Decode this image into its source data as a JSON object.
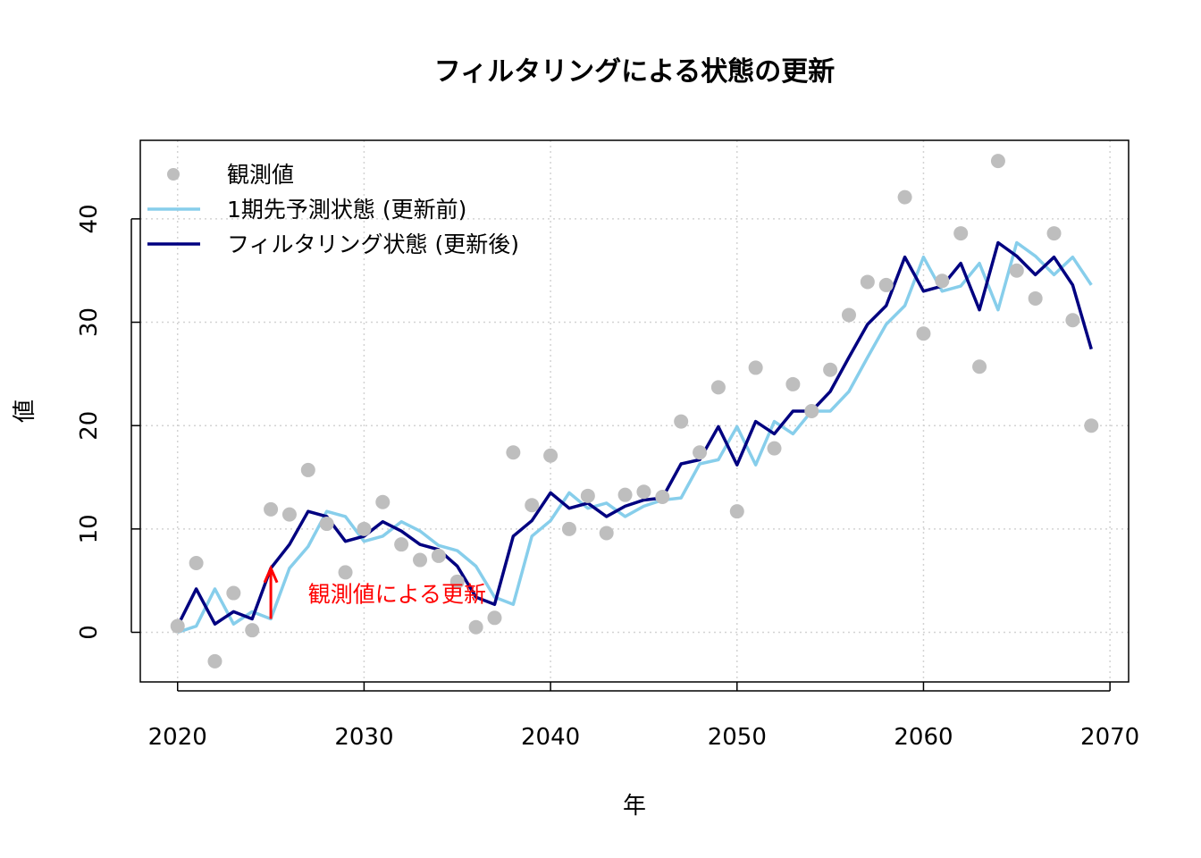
{
  "chart_data": {
    "type": "line",
    "title": "フィルタリングによる状態の更新",
    "xlabel": "年",
    "ylabel": "値",
    "xlim": [
      2018,
      2071
    ],
    "ylim": [
      -4.8,
      47.6
    ],
    "x_ticks": [
      2020,
      2030,
      2040,
      2050,
      2060,
      2070
    ],
    "x_tick_labels": [
      "2020",
      "2030",
      "2040",
      "2050",
      "2060",
      "2070"
    ],
    "y_ticks": [
      0,
      10,
      20,
      30,
      40
    ],
    "y_tick_labels": [
      "0",
      "10",
      "20",
      "30",
      "40"
    ],
    "grid": true,
    "legend_position": "top-left",
    "x": [
      2020,
      2021,
      2022,
      2023,
      2024,
      2025,
      2026,
      2027,
      2028,
      2029,
      2030,
      2031,
      2032,
      2033,
      2034,
      2035,
      2036,
      2037,
      2038,
      2039,
      2040,
      2041,
      2042,
      2043,
      2044,
      2045,
      2046,
      2047,
      2048,
      2049,
      2050,
      2051,
      2052,
      2053,
      2054,
      2055,
      2056,
      2057,
      2058,
      2059,
      2060,
      2061,
      2062,
      2063,
      2064,
      2065,
      2066,
      2067,
      2068,
      2069
    ],
    "series": [
      {
        "name": "観測値",
        "kind": "points",
        "color": "#bebebe",
        "values": [
          0.6,
          6.7,
          -2.8,
          3.8,
          0.2,
          11.9,
          11.4,
          15.7,
          10.5,
          5.8,
          10.0,
          12.6,
          8.5,
          7.0,
          7.4,
          4.9,
          0.5,
          1.4,
          17.4,
          12.3,
          17.1,
          10.0,
          13.2,
          9.6,
          13.3,
          13.6,
          13.1,
          20.4,
          17.4,
          23.7,
          11.7,
          25.6,
          17.8,
          24.0,
          21.4,
          25.4,
          30.7,
          33.9,
          33.6,
          42.1,
          28.9,
          34.0,
          38.6,
          25.7,
          45.6,
          35.0,
          32.3,
          38.6,
          30.2,
          20.0
        ]
      },
      {
        "name": "1期先予測状態 (更新前)",
        "kind": "line",
        "color": "#87ceeb",
        "values": [
          0.0,
          0.6,
          4.2,
          0.8,
          2.0,
          1.3,
          6.2,
          8.3,
          11.7,
          11.2,
          8.8,
          9.3,
          10.7,
          9.8,
          8.4,
          7.9,
          6.4,
          3.4,
          2.7,
          9.3,
          10.8,
          13.5,
          12.0,
          12.5,
          11.2,
          12.2,
          12.8,
          13.0,
          16.3,
          16.7,
          19.9,
          16.2,
          20.4,
          19.2,
          21.4,
          21.4,
          23.3,
          26.6,
          29.8,
          31.6,
          36.3,
          33.0,
          33.5,
          35.7,
          31.2,
          37.7,
          36.4,
          34.6,
          36.3,
          33.6
        ]
      },
      {
        "name": "フィルタリング状態 (更新後)",
        "kind": "line",
        "color": "#000080",
        "values": [
          0.6,
          4.2,
          0.8,
          2.0,
          1.3,
          6.2,
          8.5,
          11.7,
          11.2,
          8.8,
          9.3,
          10.7,
          9.8,
          8.5,
          8.0,
          6.4,
          3.4,
          2.7,
          9.3,
          10.8,
          13.5,
          12.0,
          12.5,
          11.2,
          12.2,
          12.8,
          13.0,
          16.3,
          16.7,
          19.9,
          16.2,
          20.4,
          19.2,
          21.4,
          21.4,
          23.3,
          26.6,
          29.8,
          31.6,
          36.3,
          33.0,
          33.5,
          35.7,
          31.2,
          37.7,
          36.4,
          34.6,
          36.3,
          33.6,
          27.4
        ]
      }
    ],
    "annotation": {
      "text": "観測値による更新",
      "arrow_x": 2025,
      "arrow_from": 1.3,
      "arrow_to": 6.2,
      "label_x": 2027,
      "label_y": 3.7,
      "color": "#ff0000"
    }
  }
}
